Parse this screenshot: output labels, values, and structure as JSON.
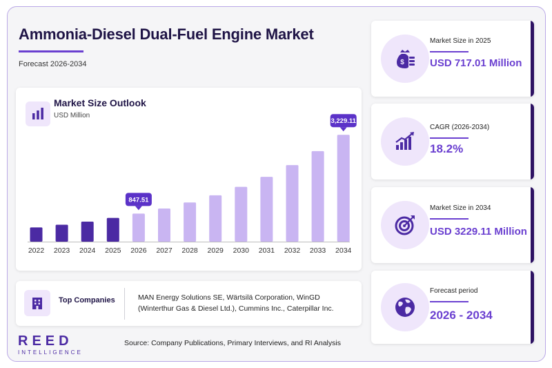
{
  "header": {
    "title": "Ammonia-Diesel Dual-Fuel Engine Market",
    "subtitle": "Forecast 2026-2034"
  },
  "chart": {
    "title": "Market Size Outlook",
    "unit": "USD Million"
  },
  "chart_data": {
    "type": "bar",
    "categories": [
      "2022",
      "2023",
      "2024",
      "2025",
      "2026",
      "2027",
      "2028",
      "2029",
      "2030",
      "2031",
      "2032",
      "2033",
      "2034"
    ],
    "values": [
      430,
      510,
      605,
      717.01,
      847.51,
      1002,
      1184,
      1400,
      1655,
      1957,
      2313,
      2734,
      3229.11
    ],
    "highlight_labels": {
      "2026": "847.51",
      "2034": "3,229.11"
    },
    "historical_years": [
      "2022",
      "2023",
      "2024",
      "2025"
    ],
    "colors": {
      "historical": "#4b2aa3",
      "forecast": "#c9b5f2",
      "callout": "#5b32c8"
    },
    "title": "Market Size Outlook",
    "ylabel": "USD Million",
    "ylim": [
      0,
      3400
    ],
    "grid": false
  },
  "companies": {
    "label": "Top Companies",
    "text": "MAN Energy Solutions SE, Wärtsilä Corporation, WinGD (Winterthur Gas & Diesel Ltd.), Cummins Inc., Caterpillar Inc."
  },
  "stats": [
    {
      "label": "Market Size in 2025",
      "value": "USD 717.01 Million",
      "icon": "money-bag-icon"
    },
    {
      "label": "CAGR (2026-2034)",
      "value": "18.2%",
      "icon": "growth-chart-icon"
    },
    {
      "label": "Market Size in 2034",
      "value": "USD 3229.11 Million",
      "icon": "target-icon"
    },
    {
      "label": "Forecast period",
      "value": "2026 - 2034",
      "icon": "globe-icon"
    }
  ],
  "brand": {
    "name": "REED",
    "tagline": "INTELLIGENCE"
  },
  "footer": {
    "source": "Source: Company Publications, Primary Interviews, and RI Analysis"
  },
  "theme": {
    "accent": "#6a3fd0",
    "dark": "#1f1446",
    "brand": "#4b2aa3",
    "icon_bg": "#efe6fb"
  }
}
